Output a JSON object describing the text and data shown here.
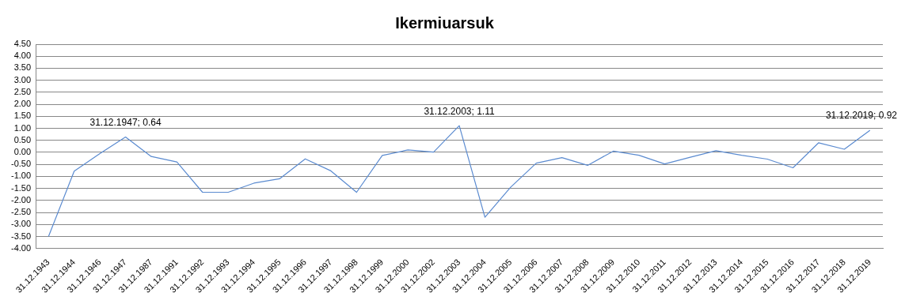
{
  "chart_data": {
    "type": "line",
    "title": "Ikermiuarsuk",
    "categories": [
      "31.12.1943",
      "31.12.1944",
      "31.12.1946",
      "31.12.1947",
      "31.12.1987",
      "31.12.1991",
      "31.12.1992",
      "31.12.1993",
      "31.12.1994",
      "31.12.1995",
      "31.12.1996",
      "31.12.1997",
      "31.12.1998",
      "31.12.1999",
      "31.12.2000",
      "31.12.2002",
      "31.12.2003",
      "31.12.2004",
      "31.12.2005",
      "31.12.2006",
      "31.12.2007",
      "31.12.2008",
      "31.12.2009",
      "31.12.2010",
      "31.12.2011",
      "31.12.2012",
      "31.12.2013",
      "31.12.2014",
      "31.12.2015",
      "31.12.2016",
      "31.12.2017",
      "31.12.2018",
      "31.12.2019"
    ],
    "series": [
      {
        "color": "#5b8bd0",
        "values": [
          -3.5,
          -0.78,
          -0.05,
          0.64,
          -0.17,
          -0.4,
          -1.66,
          -1.66,
          -1.28,
          -1.1,
          -0.27,
          -0.77,
          -1.66,
          -0.13,
          0.1,
          0.01,
          1.11,
          -2.7,
          -1.45,
          -0.45,
          -0.22,
          -0.54,
          0.05,
          -0.12,
          -0.48,
          -0.2,
          0.07,
          -0.12,
          -0.28,
          -0.64,
          0.4,
          0.13,
          0.92
        ]
      }
    ],
    "ylim": [
      -4,
      4.5
    ],
    "yticks": [
      {
        "value": -4,
        "label": "-4.00"
      },
      {
        "value": -3.5,
        "label": "-3.50"
      },
      {
        "value": -3,
        "label": "-3.00"
      },
      {
        "value": -2.5,
        "label": "-2.50"
      },
      {
        "value": -2,
        "label": "-2.00"
      },
      {
        "value": -1.5,
        "label": "-1.50"
      },
      {
        "value": -1,
        "label": "-1.00"
      },
      {
        "value": -0.5,
        "label": "-0.50"
      },
      {
        "value": 0,
        "label": "0.00"
      },
      {
        "value": 0.5,
        "label": "0.50"
      },
      {
        "value": 1,
        "label": "1.00"
      },
      {
        "value": 1.5,
        "label": "1.50"
      },
      {
        "value": 2,
        "label": "2.00"
      },
      {
        "value": 2.5,
        "label": "2.50"
      },
      {
        "value": 3,
        "label": "3.00"
      },
      {
        "value": 3.5,
        "label": "3.50"
      },
      {
        "value": 4,
        "label": "4.00"
      },
      {
        "value": 4.5,
        "label": "4.50"
      }
    ],
    "grid": "y",
    "legend": false,
    "marker": "none",
    "line_style": "solid",
    "annotations": [
      {
        "text": "31.12.1947; 0.64",
        "x": "31.12.1947",
        "y": 0.64
      },
      {
        "text": "31.12.2003; 1.11",
        "x": "31.12.2003",
        "y": 1.11
      },
      {
        "text": "31.12.2019; 0.92",
        "x": "31.12.2019",
        "y": 0.92
      }
    ]
  }
}
